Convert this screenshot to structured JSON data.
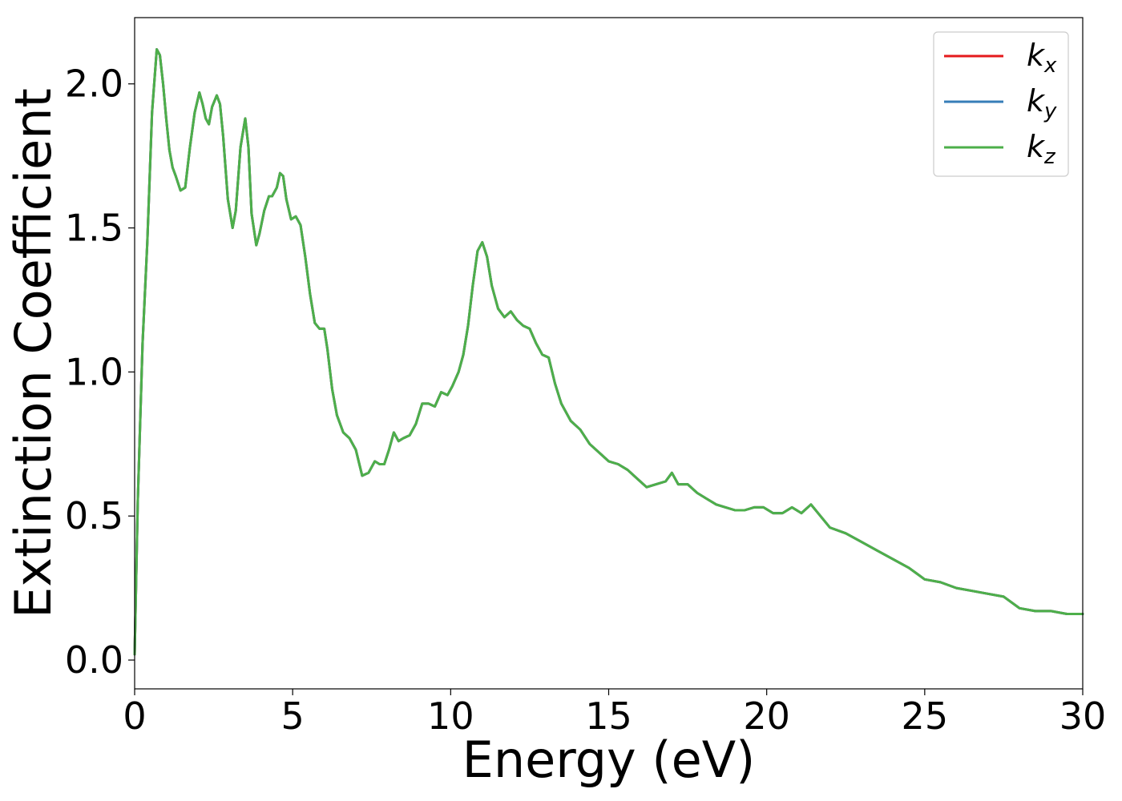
{
  "chart_data": {
    "type": "line",
    "title": "",
    "xlabel": "Energy (eV)",
    "ylabel": "Extinction Coefficient",
    "xlim": [
      0,
      30
    ],
    "ylim": [
      -0.1,
      2.23
    ],
    "x_ticks": [
      "0",
      "5",
      "10",
      "15",
      "20",
      "25",
      "30"
    ],
    "x_tick_values": [
      0,
      5,
      10,
      15,
      20,
      25,
      30
    ],
    "y_ticks": [
      "0.0",
      "0.5",
      "1.0",
      "1.5",
      "2.0"
    ],
    "y_tick_values": [
      0,
      0.5,
      1.0,
      1.5,
      2.0
    ],
    "grid": false,
    "legend_position": "top-right",
    "x": [
      0,
      0.1,
      0.25,
      0.4,
      0.55,
      0.7,
      0.8,
      0.9,
      1.0,
      1.1,
      1.2,
      1.3,
      1.45,
      1.6,
      1.75,
      1.9,
      2.05,
      2.15,
      2.25,
      2.35,
      2.45,
      2.6,
      2.7,
      2.8,
      2.95,
      3.1,
      3.2,
      3.35,
      3.5,
      3.6,
      3.7,
      3.85,
      3.95,
      4.1,
      4.25,
      4.35,
      4.5,
      4.6,
      4.7,
      4.8,
      4.95,
      5.1,
      5.25,
      5.4,
      5.55,
      5.7,
      5.85,
      6.0,
      6.1,
      6.25,
      6.4,
      6.6,
      6.8,
      7.0,
      7.2,
      7.4,
      7.6,
      7.75,
      7.9,
      8.05,
      8.2,
      8.35,
      8.5,
      8.7,
      8.9,
      9.1,
      9.3,
      9.5,
      9.7,
      9.9,
      10.05,
      10.25,
      10.4,
      10.55,
      10.7,
      10.85,
      11.0,
      11.15,
      11.3,
      11.5,
      11.7,
      11.9,
      12.1,
      12.3,
      12.5,
      12.7,
      12.9,
      13.1,
      13.3,
      13.5,
      13.8,
      14.1,
      14.4,
      14.7,
      15.0,
      15.3,
      15.6,
      15.9,
      16.2,
      16.5,
      16.8,
      17.0,
      17.2,
      17.5,
      17.8,
      18.1,
      18.4,
      18.7,
      19.0,
      19.3,
      19.6,
      19.9,
      20.2,
      20.5,
      20.8,
      21.1,
      21.4,
      21.7,
      22.0,
      22.5,
      23.0,
      23.5,
      24.0,
      24.5,
      25.0,
      25.5,
      26.0,
      26.5,
      27.0,
      27.5,
      28.0,
      28.5,
      29.0,
      29.5,
      30.0
    ],
    "y": [
      0.02,
      0.55,
      1.1,
      1.45,
      1.9,
      2.12,
      2.1,
      2.0,
      1.88,
      1.77,
      1.71,
      1.68,
      1.63,
      1.64,
      1.78,
      1.9,
      1.97,
      1.93,
      1.88,
      1.86,
      1.92,
      1.96,
      1.93,
      1.82,
      1.6,
      1.5,
      1.56,
      1.78,
      1.88,
      1.78,
      1.55,
      1.44,
      1.48,
      1.56,
      1.61,
      1.61,
      1.64,
      1.69,
      1.68,
      1.6,
      1.53,
      1.54,
      1.51,
      1.4,
      1.27,
      1.17,
      1.15,
      1.15,
      1.08,
      0.94,
      0.85,
      0.79,
      0.77,
      0.73,
      0.64,
      0.65,
      0.69,
      0.68,
      0.68,
      0.73,
      0.79,
      0.76,
      0.77,
      0.78,
      0.82,
      0.89,
      0.89,
      0.88,
      0.93,
      0.92,
      0.95,
      1.0,
      1.06,
      1.16,
      1.3,
      1.42,
      1.45,
      1.4,
      1.3,
      1.22,
      1.19,
      1.21,
      1.18,
      1.16,
      1.15,
      1.1,
      1.06,
      1.05,
      0.96,
      0.89,
      0.83,
      0.8,
      0.75,
      0.72,
      0.69,
      0.68,
      0.66,
      0.63,
      0.6,
      0.61,
      0.62,
      0.65,
      0.61,
      0.61,
      0.58,
      0.56,
      0.54,
      0.53,
      0.52,
      0.52,
      0.53,
      0.53,
      0.51,
      0.51,
      0.53,
      0.51,
      0.54,
      0.5,
      0.46,
      0.44,
      0.41,
      0.38,
      0.35,
      0.32,
      0.28,
      0.27,
      0.25,
      0.24,
      0.23,
      0.22,
      0.18,
      0.17,
      0.17,
      0.16,
      0.16
    ],
    "series": [
      {
        "name": "k",
        "subscript": "x",
        "color": "#e41a1c",
        "values_ref": "y"
      },
      {
        "name": "k",
        "subscript": "y",
        "color": "#377eb8",
        "values_ref": "y"
      },
      {
        "name": "k",
        "subscript": "z",
        "color": "#4daf4a",
        "values_ref": "y"
      }
    ]
  }
}
